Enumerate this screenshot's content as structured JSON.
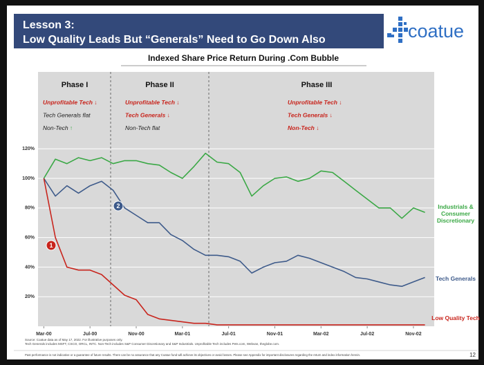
{
  "header": {
    "lesson": "Lesson 3:",
    "title": "Low Quality Leads But “Generals” Need to Go Down Also",
    "logo": "coatue"
  },
  "chart_data": {
    "type": "line",
    "title": "Indexed Share Price Return During .Com Bubble",
    "x": [
      0,
      1,
      2,
      3,
      4,
      5,
      6,
      7,
      8,
      9,
      10,
      11,
      12,
      13,
      14,
      15,
      16,
      17,
      18,
      19,
      20,
      21,
      22,
      23,
      24,
      25,
      26,
      27,
      28,
      29,
      30,
      31,
      32,
      33
    ],
    "xlim": [
      -0.5,
      33.8
    ],
    "xticks": [
      {
        "value": 0,
        "label": "Mar-00"
      },
      {
        "value": 4,
        "label": "Jul-00"
      },
      {
        "value": 8,
        "label": "Nov-00"
      },
      {
        "value": 12,
        "label": "Mar-01"
      },
      {
        "value": 16,
        "label": "Jul-01"
      },
      {
        "value": 20,
        "label": "Nov-01"
      },
      {
        "value": 24,
        "label": "Mar-02"
      },
      {
        "value": 28,
        "label": "Jul-02"
      },
      {
        "value": 32,
        "label": "Nov-02"
      }
    ],
    "ylim": [
      0,
      172
    ],
    "yticks": [
      {
        "value": 20,
        "label": "20%"
      },
      {
        "value": 40,
        "label": "40%"
      },
      {
        "value": 60,
        "label": "60%"
      },
      {
        "value": 80,
        "label": "80%"
      },
      {
        "value": 100,
        "label": "100%"
      },
      {
        "value": 120,
        "label": "120%"
      }
    ],
    "grid": true,
    "series": [
      {
        "name": "Industrials & Consumer Discretionary",
        "color": "#3aa845",
        "values": [
          100,
          113,
          110,
          114,
          112,
          114,
          110,
          112,
          112,
          110,
          109,
          104,
          100,
          108,
          117,
          111,
          110,
          104,
          88,
          95,
          100,
          101,
          98,
          100,
          105,
          104,
          98,
          92,
          86,
          80,
          80,
          73,
          80,
          77
        ]
      },
      {
        "name": "Tech Generals",
        "color": "#3d5a8a",
        "values": [
          100,
          88,
          95,
          90,
          95,
          98,
          92,
          80,
          75,
          70,
          70,
          62,
          58,
          52,
          48,
          48,
          47,
          44,
          36,
          40,
          43,
          44,
          48,
          46,
          43,
          40,
          37,
          33,
          32,
          30,
          28,
          27,
          30,
          33
        ]
      },
      {
        "name": "Low Quality Tech",
        "color": "#c8241c",
        "values": [
          100,
          60,
          40,
          38,
          38,
          35,
          28,
          21,
          18,
          8,
          5,
          4,
          3,
          2,
          2,
          1,
          1,
          1,
          1,
          1,
          1,
          1,
          1,
          1,
          1,
          1,
          1,
          1,
          1,
          1,
          1,
          1,
          1,
          1
        ]
      }
    ],
    "phases": [
      {
        "title": "Phase I",
        "notes": [
          [
            {
              "text": "Unprofitable Tech ↓",
              "color": "#c8241c"
            }
          ],
          [
            {
              "text": "Tech Generals flat",
              "color": "#222222"
            }
          ],
          [
            {
              "text": "Non-Tech ",
              "color": "#222222"
            },
            {
              "text": "↑",
              "color": "#3aa845"
            }
          ]
        ]
      },
      {
        "title": "Phase II",
        "notes": [
          [
            {
              "text": "Unprofitable Tech ↓",
              "color": "#c8241c"
            }
          ],
          [
            {
              "text": "Tech Generals ↓",
              "color": "#c8241c"
            }
          ],
          [
            {
              "text": "Non-Tech flat",
              "color": "#222222"
            }
          ]
        ]
      },
      {
        "title": "Phase III",
        "notes": [
          [
            {
              "text": "Unprofitable Tech ↓",
              "color": "#c8241c"
            }
          ],
          [
            {
              "text": "Tech Generals ↓",
              "color": "#c8241c"
            }
          ],
          [
            {
              "text": "Non-Tech ↓",
              "color": "#c8241c"
            }
          ]
        ]
      }
    ],
    "markers": [
      "1",
      "2"
    ]
  },
  "footnotes": [
    "Source: Coatue data as of May 17, 2022. For illustrative purposes only.",
    "Tech Generals includes MSFT, CSCO, ORCL, INTC. Non-Tech includes S&P Consumer Discretionary and S&P Industrials. Unprofitable Tech includes Pets.com, Webvan, theglobe.com."
  ],
  "disclaimer": "Past performance is not indicative or a guarantee of future results. There can be no assurance that any Coatue fund will achieve its objectives or avoid losses. Please see Appendix for important disclosures regarding the return and index information herein.",
  "page_number": "12"
}
